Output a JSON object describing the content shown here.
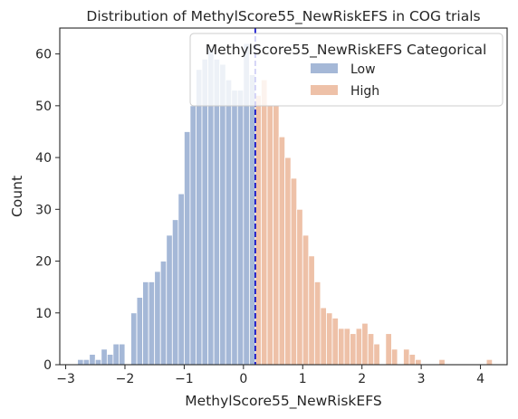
{
  "chart_data": {
    "type": "bar",
    "title": "Distribution of MethylScore55_NewRiskEFS in COG trials",
    "xlabel": "MethylScore55_NewRiskEFS",
    "ylabel": "Count",
    "xlim": [
      -3.1,
      4.45
    ],
    "ylim": [
      0,
      65
    ],
    "xticks": [
      -3,
      -2,
      -1,
      0,
      1,
      2,
      3,
      4
    ],
    "yticks": [
      0,
      10,
      20,
      30,
      40,
      50,
      60
    ],
    "grid": false,
    "bin_width": 0.1,
    "threshold": 0.2,
    "threshold_color": "#0000cc",
    "legend": {
      "title": "MethylScore55_NewRiskEFS Categorical",
      "placement": "top-right",
      "entries": [
        {
          "label": "Low",
          "color": "#4c72b0"
        },
        {
          "label": "High",
          "color": "#dd8452"
        }
      ]
    },
    "series": [
      {
        "name": "Low",
        "color": "#4c72b0",
        "bins": [
          [
            -2.75,
            1
          ],
          [
            -2.65,
            1
          ],
          [
            -2.55,
            2
          ],
          [
            -2.45,
            1
          ],
          [
            -2.35,
            3
          ],
          [
            -2.25,
            2
          ],
          [
            -2.15,
            4
          ],
          [
            -2.05,
            4
          ],
          [
            -1.85,
            10
          ],
          [
            -1.75,
            13
          ],
          [
            -1.65,
            16
          ],
          [
            -1.55,
            16
          ],
          [
            -1.45,
            18
          ],
          [
            -1.35,
            20
          ],
          [
            -1.25,
            25
          ],
          [
            -1.15,
            28
          ],
          [
            -1.05,
            33
          ],
          [
            -0.95,
            45
          ],
          [
            -0.85,
            50
          ],
          [
            -0.75,
            57
          ],
          [
            -0.65,
            59
          ],
          [
            -0.55,
            61
          ],
          [
            -0.45,
            59
          ],
          [
            -0.35,
            58
          ],
          [
            -0.25,
            55
          ],
          [
            -0.15,
            53
          ],
          [
            -0.05,
            53
          ],
          [
            0.05,
            62
          ],
          [
            0.15,
            56
          ]
        ]
      },
      {
        "name": "High",
        "color": "#dd8452",
        "bins": [
          [
            0.25,
            52
          ],
          [
            0.35,
            55
          ],
          [
            0.45,
            50
          ],
          [
            0.55,
            50
          ],
          [
            0.65,
            44
          ],
          [
            0.75,
            40
          ],
          [
            0.85,
            36
          ],
          [
            0.95,
            30
          ],
          [
            1.05,
            25
          ],
          [
            1.15,
            21
          ],
          [
            1.25,
            16
          ],
          [
            1.35,
            11
          ],
          [
            1.45,
            10
          ],
          [
            1.55,
            9
          ],
          [
            1.65,
            7
          ],
          [
            1.75,
            7
          ],
          [
            1.85,
            6
          ],
          [
            1.95,
            7
          ],
          [
            2.05,
            8
          ],
          [
            2.15,
            6
          ],
          [
            2.25,
            4
          ],
          [
            2.45,
            6
          ],
          [
            2.55,
            3
          ],
          [
            2.75,
            3
          ],
          [
            2.85,
            2
          ],
          [
            2.95,
            1
          ],
          [
            3.35,
            1
          ],
          [
            4.15,
            1
          ]
        ]
      }
    ]
  }
}
